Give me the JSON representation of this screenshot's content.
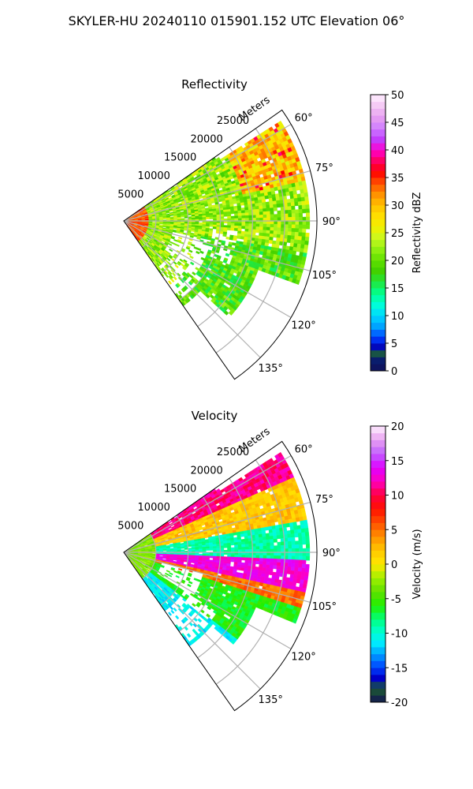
{
  "figure": {
    "title": "SKYLER-HU  20240110  015901.152 UTC Elevation 06°"
  },
  "chart_data": [
    {
      "type": "heatmap",
      "projection": "polar-sector",
      "title": "Reflectivity",
      "radial_label": "Meters",
      "radial_ticks": [
        5000,
        10000,
        15000,
        20000,
        25000
      ],
      "radial_range": [
        0,
        30000
      ],
      "azimuth_ticks": [
        "60°",
        "75°",
        "90°",
        "105°",
        "120°",
        "135°"
      ],
      "azimuth_range_deg": [
        55,
        145
      ],
      "grid": true,
      "colorbar": {
        "label": "Reflectivity dBZ",
        "range": [
          0,
          50
        ],
        "ticks": [
          0,
          5,
          10,
          15,
          20,
          25,
          30,
          35,
          40,
          45,
          50
        ],
        "colormap": "radar-reflectivity"
      },
      "features": [
        {
          "near_range_m": [
            0,
            5000
          ],
          "approx_value": 36
        },
        {
          "main_field_approx_range": [
            18,
            30
          ]
        },
        {
          "strongest_echoes_azimuth_deg": [
            60,
            75
          ],
          "strongest_range_m": [
            20000,
            27000
          ],
          "approx_value": 36
        }
      ]
    },
    {
      "type": "heatmap",
      "projection": "polar-sector",
      "title": "Velocity",
      "radial_label": "Meters",
      "radial_ticks": [
        5000,
        10000,
        15000,
        20000,
        25000
      ],
      "radial_range": [
        0,
        30000
      ],
      "azimuth_ticks": [
        "60°",
        "75°",
        "90°",
        "105°",
        "120°",
        "135°"
      ],
      "azimuth_range_deg": [
        55,
        145
      ],
      "grid": true,
      "colorbar": {
        "label": "Velocity (m/s)",
        "range": [
          -20,
          20
        ],
        "ticks": [
          -20,
          -15,
          -10,
          -5,
          0,
          5,
          10,
          15,
          20
        ],
        "colormap": "radar-velocity"
      },
      "features": [
        {
          "azimuth_deg_center": 60,
          "approx_value": 12
        },
        {
          "azimuth_deg_center": 72,
          "approx_value": 2
        },
        {
          "azimuth_deg_center": 88,
          "approx_value": -8
        },
        {
          "azimuth_deg_center": 98,
          "approx_value": 14
        },
        {
          "azimuth_deg_center": 115,
          "approx_value": -6
        },
        {
          "azimuth_deg_center": 135,
          "approx_value": -10
        }
      ]
    }
  ]
}
